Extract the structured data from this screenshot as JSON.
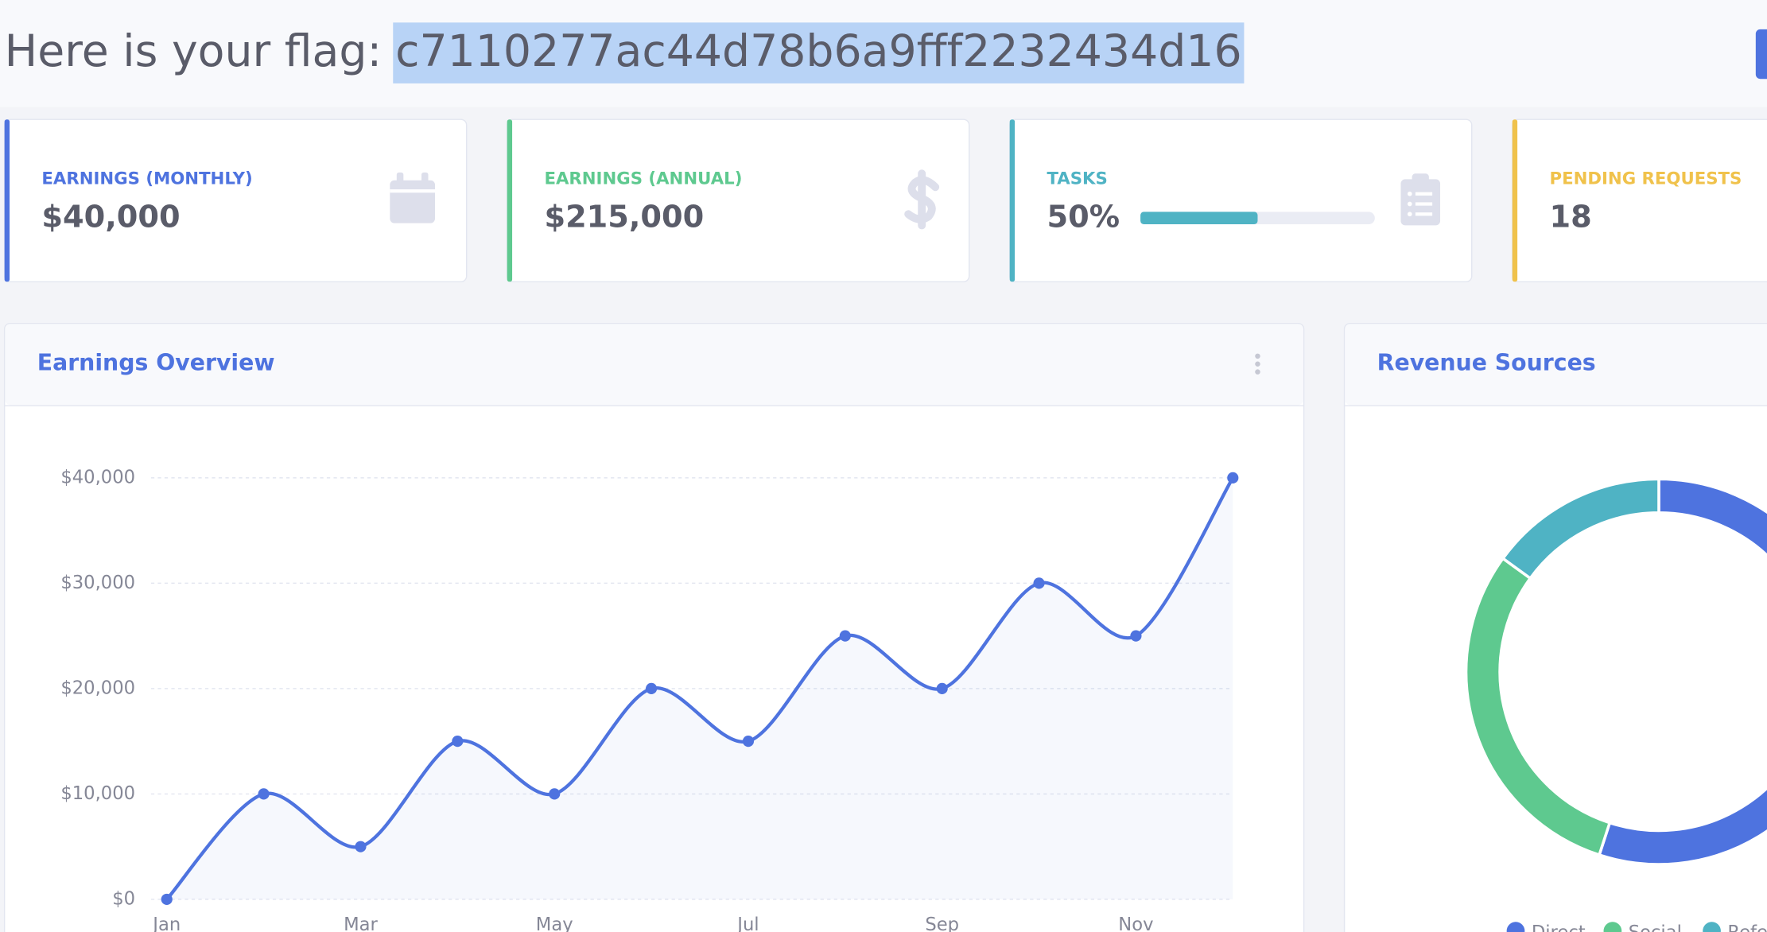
{
  "header": {
    "flag_label": "Here is your flag:",
    "flag_value": "c7110277ac44d78b6a9fff2232434d16"
  },
  "cards": [
    {
      "label": "EARNINGS (MONTHLY)",
      "value": "$40,000",
      "color": "#4e73df"
    },
    {
      "label": "EARNINGS (ANNUAL)",
      "value": "$215,000",
      "color": "#5ec98f"
    },
    {
      "label": "TASKS",
      "value": "50%",
      "progress": 50,
      "color": "#4fb3c4"
    },
    {
      "label": "PENDING REQUESTS",
      "value": "18",
      "color": "#f0c24b"
    }
  ],
  "charts": [
    {
      "type": "line",
      "title": "Earnings Overview",
      "categories": [
        "Jan",
        null,
        "Mar",
        null,
        "May",
        null,
        "Jul",
        null,
        "Sep",
        null,
        "Nov",
        null
      ],
      "values": [
        0,
        10000,
        5000,
        15000,
        10000,
        20000,
        15000,
        25000,
        20000,
        30000,
        25000,
        40000
      ],
      "color": "#4e73df",
      "ylim": [
        0,
        40000
      ],
      "yticks": [
        {
          "value": 0,
          "label": "$0"
        },
        {
          "value": 10000,
          "label": "$10,000"
        },
        {
          "value": 20000,
          "label": "$20,000"
        },
        {
          "value": 30000,
          "label": "$30,000"
        },
        {
          "value": 40000,
          "label": "$40,000"
        }
      ],
      "grid": true
    },
    {
      "type": "donut",
      "title": "Revenue Sources",
      "categories": [
        "Direct",
        "Social",
        "Referral"
      ],
      "values": [
        55,
        30,
        15
      ],
      "colors": [
        "#4e73df",
        "#5ec98f",
        "#4fb3c4"
      ]
    }
  ]
}
